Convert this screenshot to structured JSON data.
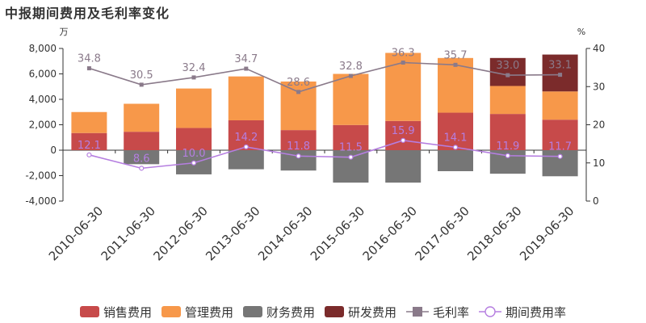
{
  "title": "中报期间费用及毛利率变化",
  "chart_data": {
    "type": "bar",
    "title": "中报期间费用及毛利率变化",
    "categories": [
      "2010-06-30",
      "2011-06-30",
      "2012-06-30",
      "2013-06-30",
      "2014-06-30",
      "2015-06-30",
      "2016-06-30",
      "2017-06-30",
      "2018-06-30",
      "2019-06-30"
    ],
    "y_left": {
      "unit": "万",
      "ylim": [
        -4000,
        8000
      ],
      "ticks": [
        "-4,000",
        "-2,000",
        "0",
        "2,000",
        "4,000",
        "6,000",
        "8,000"
      ]
    },
    "y_right": {
      "unit": "%",
      "ylim": [
        0,
        40
      ],
      "ticks": [
        "0",
        "10",
        "20",
        "30",
        "40"
      ]
    },
    "grid": false,
    "legend_position": "bottom",
    "bar_series": [
      {
        "name": "销售费用",
        "color": "#c74a4a",
        "values": [
          1350,
          1450,
          1750,
          2350,
          1580,
          1980,
          2300,
          2950,
          2850,
          2400
        ]
      },
      {
        "name": "管理费用",
        "color": "#f7984a",
        "values": [
          1650,
          2200,
          3100,
          3450,
          3820,
          4020,
          5350,
          4300,
          2200,
          2220
        ]
      },
      {
        "name": "财务费用",
        "color": "#767676",
        "values": [
          0,
          -1100,
          -1900,
          -1500,
          -1600,
          -2550,
          -2550,
          -1650,
          -1850,
          -2050
        ]
      },
      {
        "name": "研发费用",
        "color": "#7b2b2b",
        "values": [
          0,
          0,
          0,
          0,
          0,
          0,
          0,
          0,
          2200,
          2900
        ]
      }
    ],
    "line_series": [
      {
        "name": "毛利率",
        "color": "#8a7a8a",
        "marker": "square",
        "label_color": "#8a7a8a",
        "values": [
          34.8,
          30.5,
          32.4,
          34.7,
          28.6,
          32.8,
          36.3,
          35.7,
          33.0,
          33.1
        ],
        "labels": [
          "34.8",
          "30.5",
          "32.4",
          "34.7",
          "28.6",
          "32.8",
          "36.3",
          "35.7",
          "33.0",
          "33.1"
        ]
      },
      {
        "name": "期间费用率",
        "color": "#b57ee0",
        "marker": "circle",
        "label_color": "#b57ee0",
        "values": [
          12.1,
          8.6,
          10.0,
          14.2,
          11.8,
          11.5,
          15.9,
          14.1,
          11.9,
          11.7
        ],
        "labels": [
          "12.1",
          "8.6",
          "10.0",
          "14.2",
          "11.8",
          "11.5",
          "15.9",
          "14.1",
          "11.9",
          "11.7"
        ]
      }
    ]
  }
}
